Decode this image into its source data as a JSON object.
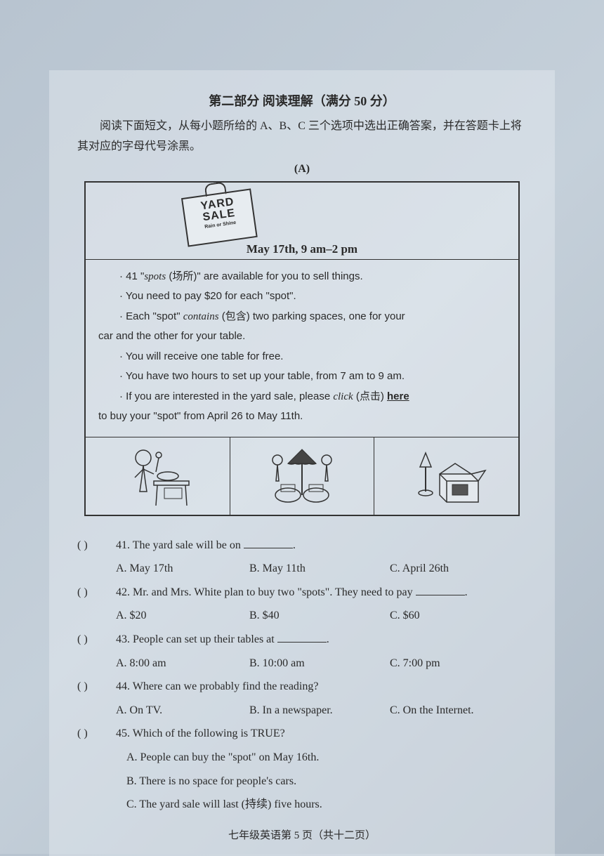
{
  "section": {
    "title": "第二部分  阅读理解（满分 50 分）",
    "instructions": "阅读下面短文，从每小题所给的 A、B、C 三个选项中选出正确答案，并在答题卡上将其对应的字母代号涂黑。",
    "passage_label": "(A)"
  },
  "sign": {
    "line1": "YARD",
    "line2": "SALE",
    "subtitle": "Rain or Shine"
  },
  "date_line": "May 17th, 9 am–2 pm",
  "bullets": [
    {
      "indent": true,
      "html": "· 41 \"<span class='italic'>spots</span> (场所)\" are available for you to sell things."
    },
    {
      "indent": true,
      "html": "· You need to pay $20 for each \"spot\"."
    },
    {
      "indent": true,
      "html": "· Each \"spot\" <span class='italic'>contains</span> (包含) two parking spaces, one for your"
    },
    {
      "indent": false,
      "html": "car and the other for your table."
    },
    {
      "indent": true,
      "html": "· You will receive one table for free."
    },
    {
      "indent": true,
      "html": "· You have two hours to set up your table, from 7 am to 9 am."
    },
    {
      "indent": true,
      "html": "· If you are interested in the yard sale, please <span class='italic'>click</span> (点击) <span class='underline-bold'>here</span>"
    },
    {
      "indent": false,
      "html": "to buy your \"spot\" from April 26 to May 11th."
    }
  ],
  "questions": [
    {
      "num": "41",
      "stem": "The yard sale will be on ________.",
      "a": "A. May 17th",
      "b": "B. May 11th",
      "c": "C. April 26th"
    },
    {
      "num": "42",
      "stem": "Mr. and Mrs. White plan to buy two \"spots\". They need to pay ________.",
      "a": "A. $20",
      "b": "B. $40",
      "c": "C. $60"
    },
    {
      "num": "43",
      "stem": "People can set up their tables at ________.",
      "a": "A. 8:00 am",
      "b": "B. 10:00 am",
      "c": "C. 7:00 pm"
    },
    {
      "num": "44",
      "stem": "Where can we probably find the reading?",
      "a": "A. On TV.",
      "b": "B. In a newspaper.",
      "c": "C. On the Internet."
    },
    {
      "num": "45",
      "stem": "Which of the following is TRUE?",
      "vertical": [
        "A. People can buy the \"spot\" on May 16th.",
        "B. There is no space for people's cars.",
        "C. The yard sale will last (持续) five hours."
      ]
    }
  ],
  "footer": "七年级英语第 5 页（共十二页）"
}
